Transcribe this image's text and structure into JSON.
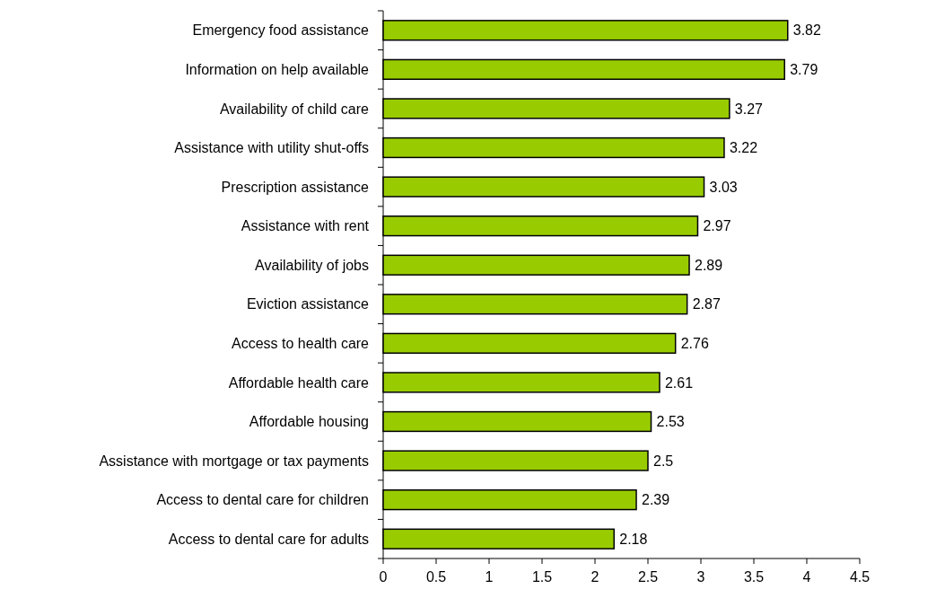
{
  "chart_data": {
    "type": "bar",
    "orientation": "horizontal",
    "categories": [
      "Emergency food assistance",
      "Information on help available",
      "Availability of child care",
      "Assistance with utility shut-offs",
      "Prescription assistance",
      "Assistance with rent",
      "Availability of jobs",
      "Eviction assistance",
      "Access to health care",
      "Affordable health care",
      "Affordable housing",
      "Assistance with mortgage or tax payments",
      "Access to dental care for children",
      "Access to dental care for adults"
    ],
    "values": [
      3.82,
      3.79,
      3.27,
      3.22,
      3.03,
      2.97,
      2.89,
      2.87,
      2.76,
      2.61,
      2.53,
      2.5,
      2.39,
      2.18
    ],
    "color": "#99cc00",
    "xlim": [
      0,
      4.5
    ],
    "xticks": [
      0,
      0.5,
      1,
      1.5,
      2,
      2.5,
      3,
      3.5,
      4,
      4.5
    ],
    "data_labels": true,
    "grid": false
  }
}
